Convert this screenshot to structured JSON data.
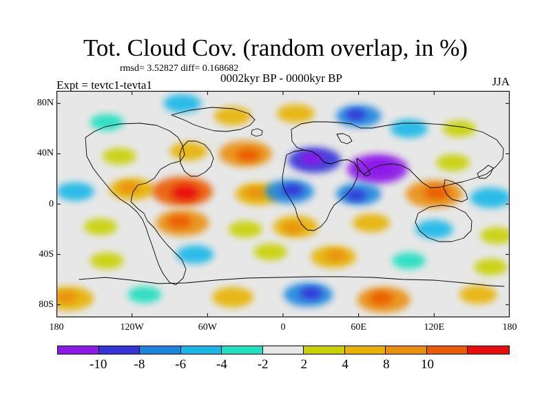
{
  "figure": {
    "title": "Tot. Cloud Cov. (random overlap, in %)",
    "stats": "rmsd= 3.52827 diff= 0.168682",
    "subtitle": "0002kyr BP - 0000kyr BP",
    "experiment": "Expt = tevtc1-tevta1",
    "season": "JJA"
  },
  "axes": {
    "latitude_labels": [
      "80N",
      "40N",
      "0",
      "40S",
      "80S"
    ],
    "longitude_labels": [
      "180",
      "120W",
      "60W",
      "0",
      "60E",
      "120E",
      "180"
    ]
  },
  "colorbar": {
    "colors": [
      "#8b19e8",
      "#3434d8",
      "#1b86df",
      "#19b7e8",
      "#1fe0c1",
      "#e7e7e7",
      "#c9d100",
      "#e7b300",
      "#ea8f09",
      "#eb5b00",
      "#ea0d0d"
    ],
    "labels": [
      "-10",
      "-8",
      "-6",
      "-4",
      "-2",
      "2",
      "4",
      "8",
      "10"
    ]
  },
  "chart_data": {
    "type": "heatmap",
    "title": "Tot. Cloud Cov. (random overlap, in %)",
    "subtitle": "0002kyr BP - 0000kyr BP",
    "experiment": "Expt = tevtc1-tevta1",
    "season": "JJA",
    "stats": {
      "rmsd": 3.52827,
      "diff": 0.168682
    },
    "xlim": [
      -180,
      180
    ],
    "ylim": [
      -90,
      90
    ],
    "x_ticks": [
      "180",
      "120W",
      "60W",
      "0",
      "60E",
      "120E",
      "180"
    ],
    "y_ticks": [
      "80N",
      "40N",
      "0",
      "40S",
      "80S"
    ],
    "legend_levels": [
      -10,
      -8,
      -6,
      -4,
      -2,
      2,
      4,
      8,
      10
    ],
    "legend_colors": [
      "#8b19e8",
      "#3434d8",
      "#1b86df",
      "#19b7e8",
      "#1fe0c1",
      "#e7e7e7",
      "#c9d100",
      "#e7b300",
      "#ea8f09",
      "#eb5b00",
      "#ea0d0d"
    ],
    "regions": [
      {
        "lon": -140,
        "lat": 65,
        "value": -3
      },
      {
        "lon": -80,
        "lat": 80,
        "value": -4
      },
      {
        "lon": -40,
        "lat": 70,
        "value": 4
      },
      {
        "lon": 10,
        "lat": 72,
        "value": 4
      },
      {
        "lon": 60,
        "lat": 70,
        "value": -6
      },
      {
        "lon": 100,
        "lat": 60,
        "value": -4
      },
      {
        "lon": 140,
        "lat": 60,
        "value": 3
      },
      {
        "lon": -130,
        "lat": 38,
        "value": 3
      },
      {
        "lon": -75,
        "lat": 42,
        "value": 4
      },
      {
        "lon": -30,
        "lat": 40,
        "value": 8
      },
      {
        "lon": 25,
        "lat": 35,
        "value": -8
      },
      {
        "lon": 75,
        "lat": 28,
        "value": -10
      },
      {
        "lon": 135,
        "lat": 33,
        "value": 3
      },
      {
        "lon": -165,
        "lat": 10,
        "value": -4
      },
      {
        "lon": -120,
        "lat": 12,
        "value": 6
      },
      {
        "lon": -80,
        "lat": 10,
        "value": 10
      },
      {
        "lon": -20,
        "lat": 8,
        "value": 6
      },
      {
        "lon": 5,
        "lat": 10,
        "value": -7
      },
      {
        "lon": 60,
        "lat": 8,
        "value": -6
      },
      {
        "lon": 120,
        "lat": 8,
        "value": 9
      },
      {
        "lon": 165,
        "lat": 5,
        "value": -5
      },
      {
        "lon": -145,
        "lat": -18,
        "value": 3
      },
      {
        "lon": -80,
        "lat": -15,
        "value": 8
      },
      {
        "lon": -30,
        "lat": -20,
        "value": 3
      },
      {
        "lon": 10,
        "lat": -18,
        "value": 6
      },
      {
        "lon": 70,
        "lat": -15,
        "value": 4
      },
      {
        "lon": 120,
        "lat": -20,
        "value": -4
      },
      {
        "lon": 170,
        "lat": -25,
        "value": 3
      },
      {
        "lon": -140,
        "lat": -45,
        "value": 3
      },
      {
        "lon": -70,
        "lat": -40,
        "value": -4
      },
      {
        "lon": -10,
        "lat": -38,
        "value": 3
      },
      {
        "lon": 40,
        "lat": -42,
        "value": 6
      },
      {
        "lon": 100,
        "lat": -45,
        "value": -3
      },
      {
        "lon": 165,
        "lat": -50,
        "value": 3
      },
      {
        "lon": -170,
        "lat": -75,
        "value": 7
      },
      {
        "lon": -110,
        "lat": -72,
        "value": -3
      },
      {
        "lon": -40,
        "lat": -74,
        "value": 5
      },
      {
        "lon": 20,
        "lat": -72,
        "value": -7
      },
      {
        "lon": 80,
        "lat": -76,
        "value": 8
      },
      {
        "lon": 155,
        "lat": -72,
        "value": 4
      }
    ]
  }
}
